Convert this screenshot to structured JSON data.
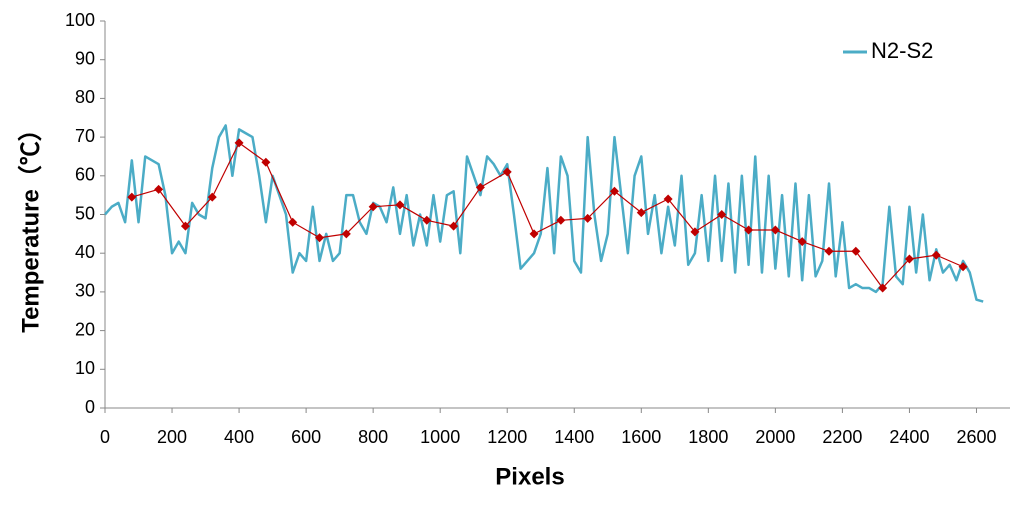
{
  "chart_data": {
    "type": "line",
    "xlabel": "Pixels",
    "ylabel": "Temperature（℃）",
    "xlim": [
      0,
      2700
    ],
    "xticks": [
      0,
      200,
      400,
      600,
      800,
      1000,
      1200,
      1400,
      1600,
      1800,
      2000,
      2200,
      2400,
      2600
    ],
    "ylim": [
      0,
      100
    ],
    "yticks": [
      0,
      10,
      20,
      30,
      40,
      50,
      60,
      70,
      80,
      90,
      100
    ],
    "grid": false,
    "legend": "upper right",
    "series": [
      {
        "name": "N2-S2",
        "color": "#4bacc6",
        "marker": "none",
        "x": [
          0,
          20,
          40,
          60,
          80,
          100,
          120,
          140,
          160,
          180,
          200,
          220,
          240,
          260,
          280,
          300,
          320,
          340,
          360,
          380,
          400,
          420,
          440,
          460,
          480,
          500,
          520,
          540,
          560,
          580,
          600,
          620,
          640,
          660,
          680,
          700,
          720,
          740,
          760,
          780,
          800,
          820,
          840,
          860,
          880,
          900,
          920,
          940,
          960,
          980,
          1000,
          1020,
          1040,
          1060,
          1080,
          1100,
          1120,
          1140,
          1160,
          1180,
          1200,
          1220,
          1240,
          1260,
          1280,
          1300,
          1320,
          1340,
          1360,
          1380,
          1400,
          1420,
          1440,
          1460,
          1480,
          1500,
          1520,
          1540,
          1560,
          1580,
          1600,
          1620,
          1640,
          1660,
          1680,
          1700,
          1720,
          1740,
          1760,
          1780,
          1800,
          1820,
          1840,
          1860,
          1880,
          1900,
          1920,
          1940,
          1960,
          1980,
          2000,
          2020,
          2040,
          2060,
          2080,
          2100,
          2120,
          2140,
          2160,
          2180,
          2200,
          2220,
          2240,
          2260,
          2280,
          2300,
          2320,
          2340,
          2360,
          2380,
          2400,
          2420,
          2440,
          2460,
          2480,
          2500,
          2520,
          2540,
          2560,
          2580,
          2600,
          2620
        ],
        "values": [
          50,
          52,
          53,
          48,
          64,
          48,
          65,
          64,
          63,
          55,
          40,
          43,
          40,
          53,
          50,
          49,
          62,
          70,
          73,
          60,
          72,
          71,
          70,
          60,
          48,
          60,
          55,
          50,
          35,
          40,
          38,
          52,
          38,
          45,
          38,
          40,
          55,
          55,
          48,
          45,
          53,
          52,
          48,
          57,
          45,
          55,
          42,
          50,
          42,
          55,
          43,
          55,
          56,
          40,
          65,
          60,
          55,
          65,
          63,
          60,
          63,
          50,
          36,
          38,
          40,
          45,
          62,
          40,
          65,
          60,
          38,
          35,
          70,
          50,
          38,
          45,
          70,
          55,
          40,
          60,
          65,
          45,
          55,
          40,
          52,
          42,
          60,
          37,
          40,
          55,
          38,
          60,
          38,
          58,
          35,
          60,
          37,
          65,
          35,
          60,
          36,
          55,
          34,
          58,
          33,
          55,
          34,
          38,
          58,
          34,
          48,
          31,
          32,
          31,
          31,
          30,
          32,
          52,
          34,
          32,
          52,
          35,
          50,
          33,
          41,
          35,
          37,
          33,
          38,
          35,
          28,
          27.5
        ]
      },
      {
        "color": "#c00000",
        "marker": "diamond",
        "x": [
          80,
          160,
          240,
          320,
          400,
          480,
          560,
          640,
          720,
          800,
          880,
          960,
          1040,
          1120,
          1200,
          1280,
          1360,
          1440,
          1520,
          1600,
          1680,
          1760,
          1840,
          1920,
          2000,
          2080,
          2160,
          2240,
          2320,
          2400,
          2480,
          2560
        ],
        "values": [
          54.5,
          56.5,
          47,
          54.5,
          68.5,
          63.5,
          48,
          44,
          45,
          52,
          52.5,
          48.5,
          47,
          57,
          61,
          45,
          48.5,
          49,
          56,
          50.5,
          54,
          45.5,
          50,
          46,
          46,
          43,
          40.5,
          40.5,
          31,
          38.5,
          39.5,
          36.5
        ]
      }
    ]
  }
}
